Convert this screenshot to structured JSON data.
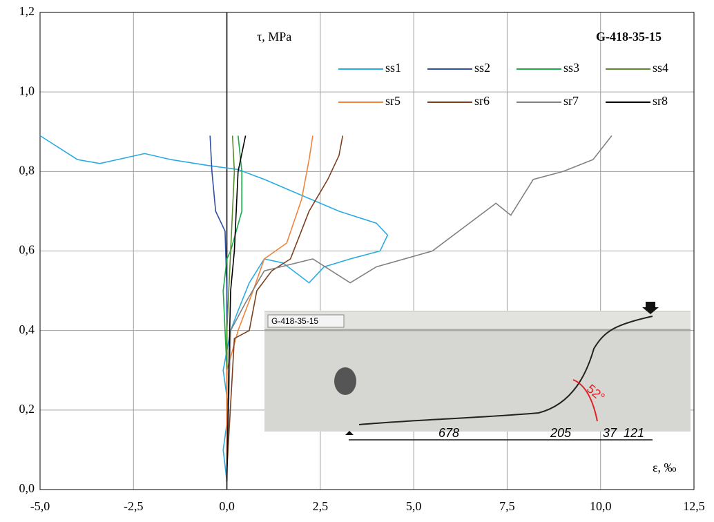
{
  "chart_data": {
    "type": "line",
    "title": "G-418-35-15",
    "y_label": "τ, MPa",
    "x_label": "ε, ‰",
    "xlim": [
      -5,
      12.5
    ],
    "ylim": [
      0,
      1.2
    ],
    "xticks": [
      {
        "value": -5,
        "label": "-5,0"
      },
      {
        "value": -2.5,
        "label": "-2,5"
      },
      {
        "value": 0,
        "label": "0,0"
      },
      {
        "value": 2.5,
        "label": "2,5"
      },
      {
        "value": 5,
        "label": "5,0"
      },
      {
        "value": 7.5,
        "label": "7,5"
      },
      {
        "value": 10,
        "label": "10,0"
      },
      {
        "value": 12.5,
        "label": "12,5"
      }
    ],
    "yticks": [
      {
        "value": 0,
        "label": "0,0"
      },
      {
        "value": 0.2,
        "label": "0,2"
      },
      {
        "value": 0.4,
        "label": "0,4"
      },
      {
        "value": 0.6,
        "label": "0,6"
      },
      {
        "value": 0.8,
        "label": "0,8"
      },
      {
        "value": 1.0,
        "label": "1,0"
      },
      {
        "value": 1.2,
        "label": "1,2"
      }
    ],
    "grid": true,
    "legend": "upper right",
    "series": [
      {
        "name": "ss1",
        "color": "#29abe2",
        "x": [
          0,
          -0.1,
          0.05,
          -0.1,
          0.1,
          0.3,
          0.6,
          1.0,
          1.5,
          2.2,
          2.6,
          3.3,
          4.1,
          4.3,
          4.0,
          3.0,
          2.0,
          1.0,
          0.3,
          -0.5,
          -1.5,
          -2.2,
          -3.4,
          -4.0,
          -5.0
        ],
        "values": [
          0.02,
          0.1,
          0.2,
          0.3,
          0.4,
          0.45,
          0.52,
          0.58,
          0.57,
          0.52,
          0.56,
          0.58,
          0.6,
          0.64,
          0.67,
          0.7,
          0.74,
          0.78,
          0.805,
          0.815,
          0.83,
          0.845,
          0.82,
          0.83,
          0.89
        ]
      },
      {
        "name": "ss2",
        "color": "#2e4e9e",
        "x": [
          0,
          0,
          0,
          -0.05,
          -0.3,
          -0.4,
          -0.45
        ],
        "values": [
          0.02,
          0.3,
          0.5,
          0.65,
          0.7,
          0.8,
          0.89
        ]
      },
      {
        "name": "ss3",
        "color": "#1aab4b",
        "x": [
          0,
          0,
          -0.1,
          0,
          0.1,
          0.4,
          0.4,
          0.3
        ],
        "values": [
          0.02,
          0.3,
          0.5,
          0.58,
          0.6,
          0.7,
          0.8,
          0.89
        ]
      },
      {
        "name": "ss4",
        "color": "#5a8a2e",
        "x": [
          0,
          0,
          0.1,
          0.2,
          0.15
        ],
        "values": [
          0.02,
          0.4,
          0.6,
          0.8,
          0.89
        ]
      },
      {
        "name": "sr5",
        "color": "#f0843c",
        "x": [
          0,
          0,
          0.3,
          0.7,
          1.0,
          1.6,
          2.0,
          2.2,
          2.3
        ],
        "values": [
          0.02,
          0.3,
          0.4,
          0.5,
          0.58,
          0.62,
          0.73,
          0.83,
          0.89
        ]
      },
      {
        "name": "sr6",
        "color": "#7b3f1e",
        "x": [
          0,
          0.2,
          0.6,
          0.8,
          1.2,
          1.7,
          2.2,
          2.7,
          3.0,
          3.1
        ],
        "values": [
          0.05,
          0.38,
          0.4,
          0.5,
          0.55,
          0.58,
          0.7,
          0.78,
          0.84,
          0.89
        ]
      },
      {
        "name": "sr7",
        "color": "#808080",
        "x": [
          0,
          0.1,
          0.5,
          1.0,
          2.3,
          3.3,
          4.0,
          5.5,
          7.2,
          7.6,
          8.2,
          9.0,
          9.8,
          10.3
        ],
        "values": [
          0.05,
          0.4,
          0.47,
          0.55,
          0.58,
          0.52,
          0.56,
          0.6,
          0.72,
          0.69,
          0.78,
          0.8,
          0.83,
          0.89
        ]
      },
      {
        "name": "sr8",
        "color": "#000000",
        "x": [
          0,
          0.05,
          0.1,
          0.2,
          0.3,
          0.5
        ],
        "values": [
          0.02,
          0.3,
          0.5,
          0.6,
          0.8,
          0.89
        ]
      }
    ],
    "annotations": [
      "G-418-35-15",
      "678",
      "205",
      "37",
      "121",
      "52°"
    ]
  }
}
